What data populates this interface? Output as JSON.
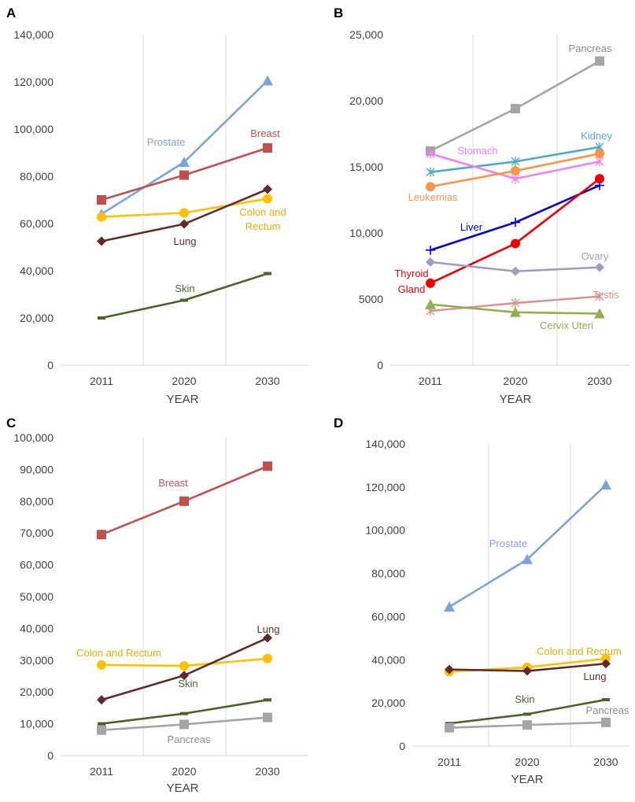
{
  "figure": {
    "panels": [
      "A",
      "B",
      "C",
      "D"
    ]
  },
  "colors": {
    "prostate": "#7BA3DC",
    "breast": "#C0504D",
    "lung": "#632A2A",
    "colon": "#FFC000",
    "skin": "#4F6228",
    "pancreas": "#A5A5A5",
    "kidney": "#4BACC6",
    "stomach": "#EE82EE",
    "leukemias": "#F79646",
    "liver": "#0000DD",
    "thyroid": "#EE0000",
    "ovary": "#A69AC8",
    "testis": "#D99594",
    "cervix": "#92B050"
  },
  "chart_data": [
    {
      "panel": "A",
      "type": "line",
      "categories": [
        "2011",
        "2020",
        "2030"
      ],
      "xlabel": "YEAR",
      "ylabel": "",
      "ylim": [
        0,
        140000
      ],
      "ytick_labels": [
        "0",
        "20,000",
        "40,000",
        "60,000",
        "80,000",
        "100,000",
        "120,000",
        "140,000"
      ],
      "grid": "vertical",
      "series": [
        {
          "name": "Prostate",
          "values": [
            64000,
            86000,
            120500
          ],
          "marker": "triangle",
          "color": "#7BA3DC",
          "label_color": "#7BA3DC"
        },
        {
          "name": "Breast",
          "values": [
            70000,
            80500,
            92000
          ],
          "marker": "square",
          "color": "#C0504D",
          "label_color": "#C0504D"
        },
        {
          "name": "Colon and Rectum",
          "values": [
            62800,
            64500,
            70500
          ],
          "marker": "circle",
          "color": "#FFC000",
          "label_color": "#E6AC00"
        },
        {
          "name": "Lung",
          "values": [
            52500,
            59800,
            74500
          ],
          "marker": "diamond",
          "color": "#632A2A",
          "label_color": "#632A2A"
        },
        {
          "name": "Skin",
          "values": [
            20000,
            27500,
            38800
          ],
          "marker": "dash",
          "color": "#4F6228",
          "label_color": "#4F6228"
        }
      ]
    },
    {
      "panel": "B",
      "type": "line",
      "categories": [
        "2011",
        "2020",
        "2030"
      ],
      "xlabel": "YEAR",
      "ylabel": "",
      "ylim": [
        0,
        25000
      ],
      "ytick_labels": [
        "0",
        "5000",
        "10,000",
        "15,000",
        "20,000",
        "25,000"
      ],
      "grid": "vertical",
      "series": [
        {
          "name": "Pancreas",
          "values": [
            16200,
            19400,
            23000
          ],
          "marker": "square",
          "color": "#A5A5A5",
          "label_color": "#8C8C8C"
        },
        {
          "name": "Kidney",
          "values": [
            14600,
            15400,
            16500
          ],
          "marker": "star",
          "color": "#4BACC6",
          "label_color": "#4BACC6"
        },
        {
          "name": "Stomach",
          "values": [
            16000,
            14100,
            15400
          ],
          "marker": "star",
          "color": "#EE82EE",
          "label_color": "#EE82EE"
        },
        {
          "name": "Leukemias",
          "values": [
            13500,
            14700,
            16000
          ],
          "marker": "circle",
          "color": "#F79646",
          "label_color": "#F79646"
        },
        {
          "name": "Liver",
          "values": [
            8700,
            10800,
            13600
          ],
          "marker": "plus",
          "color": "#0000DD",
          "label_color": "#0000DD"
        },
        {
          "name": "Thyroid Gland",
          "values": [
            6200,
            9200,
            14100
          ],
          "marker": "circle",
          "color": "#EE0000",
          "label_color": "#EE0000"
        },
        {
          "name": "Ovary",
          "values": [
            7800,
            7100,
            7400
          ],
          "marker": "diamond",
          "color": "#A69AC8",
          "label_color": "#A69AC8"
        },
        {
          "name": "Testis",
          "values": [
            4100,
            4700,
            5200
          ],
          "marker": "star",
          "color": "#D99594",
          "label_color": "#D99594"
        },
        {
          "name": "Cervix Uteri",
          "values": [
            4600,
            4000,
            3900
          ],
          "marker": "triangle",
          "color": "#92B050",
          "label_color": "#92B050"
        }
      ]
    },
    {
      "panel": "C",
      "type": "line",
      "categories": [
        "2011",
        "2020",
        "2030"
      ],
      "xlabel": "YEAR",
      "ylabel": "",
      "ylim": [
        0,
        100000
      ],
      "ytick_labels": [
        "0",
        "10,000",
        "20,000",
        "30,000",
        "40,000",
        "50,000",
        "60,000",
        "70,000",
        "80,000",
        "90,000",
        "100,000"
      ],
      "grid": "vertical",
      "series": [
        {
          "name": "Breast",
          "values": [
            69500,
            80000,
            91000
          ],
          "marker": "square",
          "color": "#C0504D",
          "label_color": "#C0504D"
        },
        {
          "name": "Colon and Rectum",
          "values": [
            28500,
            28200,
            30500
          ],
          "marker": "circle",
          "color": "#FFC000",
          "label_color": "#E6AC00"
        },
        {
          "name": "Lung",
          "values": [
            17500,
            25200,
            37000
          ],
          "marker": "diamond",
          "color": "#632A2A",
          "label_color": "#632A2A"
        },
        {
          "name": "Skin",
          "values": [
            10000,
            13200,
            17500
          ],
          "marker": "dash",
          "color": "#4F6228",
          "label_color": "#4F6228"
        },
        {
          "name": "Pancreas",
          "values": [
            8000,
            9800,
            12000
          ],
          "marker": "square",
          "color": "#A5A5A5",
          "label_color": "#8C8C8C"
        }
      ]
    },
    {
      "panel": "D",
      "type": "line",
      "categories": [
        "2011",
        "2020",
        "2030"
      ],
      "xlabel": "YEAR",
      "ylabel": "",
      "ylim": [
        0,
        140000
      ],
      "ytick_labels": [
        "0",
        "20,000",
        "40,000",
        "60,000",
        "80,000",
        "100,000",
        "120,000",
        "140,000"
      ],
      "grid": "vertical",
      "series": [
        {
          "name": "Prostate",
          "values": [
            64500,
            86500,
            121000
          ],
          "marker": "triangle",
          "color": "#7BA3DC",
          "label_color": "#7BA3DC"
        },
        {
          "name": "Colon and Rectum",
          "values": [
            34500,
            36500,
            40500
          ],
          "marker": "circle",
          "color": "#FFC000",
          "label_color": "#E6AC00"
        },
        {
          "name": "Lung",
          "values": [
            35500,
            34800,
            38200
          ],
          "marker": "diamond",
          "color": "#632A2A",
          "label_color": "#632A2A"
        },
        {
          "name": "Skin",
          "values": [
            10500,
            14800,
            21500
          ],
          "marker": "dash",
          "color": "#4F6228",
          "label_color": "#4F6228"
        },
        {
          "name": "Pancreas",
          "values": [
            8500,
            9800,
            11000
          ],
          "marker": "square",
          "color": "#A5A5A5",
          "label_color": "#8C8C8C"
        }
      ]
    }
  ]
}
